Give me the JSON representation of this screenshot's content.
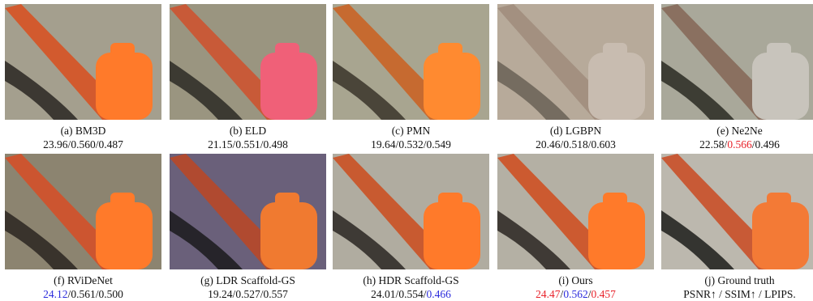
{
  "separator": "/",
  "panels": [
    {
      "caption": "(a) BM3D",
      "metrics": [
        {
          "value": "23.96"
        },
        {
          "value": "0.560"
        },
        {
          "value": "0.487"
        }
      ]
    },
    {
      "caption": "(b) ELD",
      "metrics": [
        {
          "value": "21.15"
        },
        {
          "value": "0.551"
        },
        {
          "value": "0.498"
        }
      ]
    },
    {
      "caption": "(c) PMN",
      "metrics": [
        {
          "value": "19.64"
        },
        {
          "value": "0.532"
        },
        {
          "value": "0.549"
        }
      ]
    },
    {
      "caption": "(d) LGBPN",
      "metrics": [
        {
          "value": "20.46"
        },
        {
          "value": "0.518"
        },
        {
          "value": "0.603"
        }
      ]
    },
    {
      "caption": "(e) Ne2Ne",
      "metrics": [
        {
          "value": "22.58"
        },
        {
          "value": "0.566",
          "color": "#e8222a"
        },
        {
          "value": "0.496"
        }
      ]
    },
    {
      "caption": "(f) RViDeNet",
      "metrics": [
        {
          "value": "24.12",
          "color": "#2b2bdc"
        },
        {
          "value": "0.561"
        },
        {
          "value": "0.500"
        }
      ]
    },
    {
      "caption": "(g) LDR Scaffold-GS",
      "metrics": [
        {
          "value": "19.24"
        },
        {
          "value": "0.527"
        },
        {
          "value": "0.557"
        }
      ]
    },
    {
      "caption": "(h) HDR Scaffold-GS",
      "metrics": [
        {
          "value": "24.01"
        },
        {
          "value": "0.554"
        },
        {
          "value": "0.466",
          "color": "#2b2bdc"
        }
      ]
    },
    {
      "caption": "(i) Ours",
      "metrics": [
        {
          "value": "24.47",
          "color": "#e8222a"
        },
        {
          "value": "0.562",
          "color": "#2b2bdc"
        },
        {
          "value": "0.457",
          "color": "#e8222a"
        }
      ]
    },
    {
      "caption": "(j) Ground truth",
      "note": "PSNR↑ / SSIM↑ / LPIPS."
    }
  ]
}
